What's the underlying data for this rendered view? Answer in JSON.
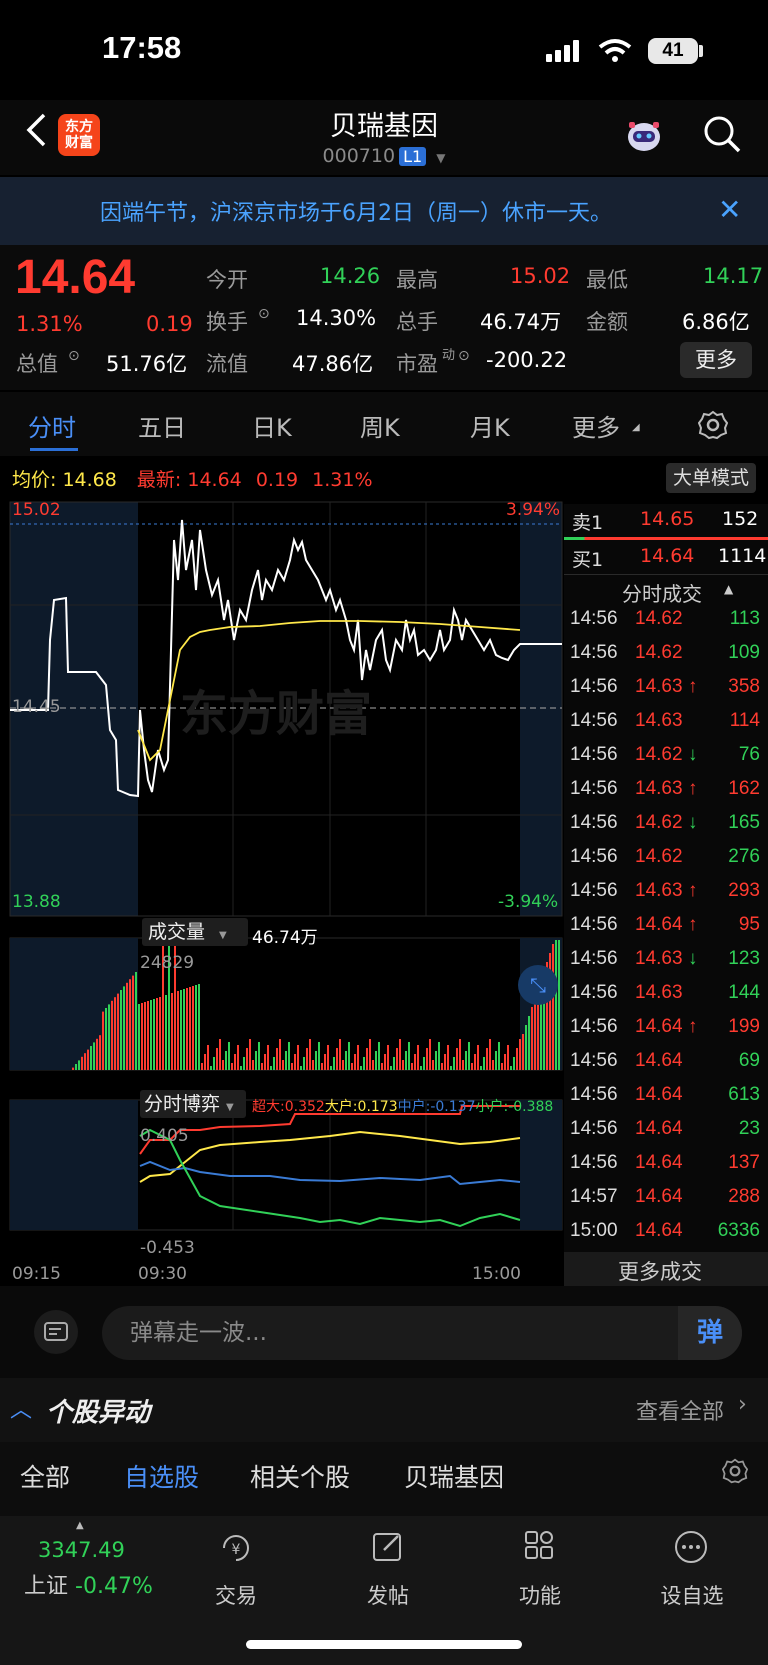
{
  "status_bar": {
    "time": "17:58",
    "battery": "41"
  },
  "header": {
    "stock_name": "贝瑞基因",
    "stock_code": "000710",
    "level_badge": "L1",
    "logo_text_1": "东方",
    "logo_text_2": "财富"
  },
  "notice": {
    "text": "因端午节，沪深京市场于6月2日（周一）休市一天。"
  },
  "quote": {
    "price": "14.64",
    "change_pct": "1.31%",
    "change": "0.19",
    "fields": {
      "open_label": "今开",
      "open": "14.26",
      "high_label": "最高",
      "high": "15.02",
      "low_label": "最低",
      "low": "14.17",
      "turnover_label": "换手",
      "turnover": "14.30%",
      "volume_label": "总手",
      "volume": "46.74万",
      "amount_label": "金额",
      "amount": "6.86亿",
      "mktcap_label": "总值",
      "mktcap": "51.76亿",
      "float_label": "流值",
      "float": "47.86亿",
      "pe_label": "市盈",
      "pe_sup": "动",
      "pe": "-200.22"
    },
    "more_button": "更多"
  },
  "tabs": [
    "分时",
    "五日",
    "日K",
    "周K",
    "月K",
    "更多"
  ],
  "chart": {
    "avg_label": "均价:",
    "avg": "14.68",
    "latest_label": "最新:",
    "latest": "14.64",
    "latest_change": "0.19",
    "latest_pct": "1.31%",
    "big_order_mode": "大单模式",
    "y_top": "15.02",
    "y_top_pct": "3.94%",
    "y_mid": "14.45",
    "y_bottom": "13.88",
    "y_bottom_pct": "-3.94%",
    "watermark": "东方财富",
    "volume_label": "成交量",
    "volume_total": "46.74万",
    "volume_max": "24829",
    "game_label": "分时博弈",
    "game_super_label": "超大:",
    "game_super": "0.352",
    "game_big_label": "大户:",
    "game_big": "0.173",
    "game_mid_label": "中户:",
    "game_mid": "-0.137",
    "game_small_label": "小户:",
    "game_small": "-0.388",
    "game_top": "0.405",
    "game_bottom": "-0.453",
    "x_labels": [
      "09:15",
      "09:30",
      "15:00"
    ],
    "colors": {
      "price_line": "#ffffff",
      "avg_line": "#ffe84a",
      "up": "#ff3b30",
      "down": "#31d158"
    }
  },
  "order_book": {
    "sell1_label": "卖1",
    "sell1_price": "14.65",
    "sell1_vol": "152",
    "buy1_label": "买1",
    "buy1_price": "14.64",
    "buy1_vol": "1114",
    "trades_title": "分时成交",
    "trades": [
      {
        "time": "14:56",
        "price": "14.62",
        "arrow": "",
        "vol": "113",
        "dir": "down"
      },
      {
        "time": "14:56",
        "price": "14.62",
        "arrow": "",
        "vol": "109",
        "dir": "down"
      },
      {
        "time": "14:56",
        "price": "14.63",
        "arrow": "↑",
        "vol": "358",
        "dir": "up"
      },
      {
        "time": "14:56",
        "price": "14.63",
        "arrow": "",
        "vol": "114",
        "dir": "up"
      },
      {
        "time": "14:56",
        "price": "14.62",
        "arrow": "↓",
        "vol": "76",
        "dir": "down"
      },
      {
        "time": "14:56",
        "price": "14.63",
        "arrow": "↑",
        "vol": "162",
        "dir": "up"
      },
      {
        "time": "14:56",
        "price": "14.62",
        "arrow": "↓",
        "vol": "165",
        "dir": "down"
      },
      {
        "time": "14:56",
        "price": "14.62",
        "arrow": "",
        "vol": "276",
        "dir": "down"
      },
      {
        "time": "14:56",
        "price": "14.63",
        "arrow": "↑",
        "vol": "293",
        "dir": "up"
      },
      {
        "time": "14:56",
        "price": "14.64",
        "arrow": "↑",
        "vol": "95",
        "dir": "up"
      },
      {
        "time": "14:56",
        "price": "14.63",
        "arrow": "↓",
        "vol": "123",
        "dir": "down"
      },
      {
        "time": "14:56",
        "price": "14.63",
        "arrow": "",
        "vol": "144",
        "dir": "down"
      },
      {
        "time": "14:56",
        "price": "14.64",
        "arrow": "↑",
        "vol": "199",
        "dir": "up"
      },
      {
        "time": "14:56",
        "price": "14.64",
        "arrow": "",
        "vol": "69",
        "dir": "down"
      },
      {
        "time": "14:56",
        "price": "14.64",
        "arrow": "",
        "vol": "613",
        "dir": "down"
      },
      {
        "time": "14:56",
        "price": "14.64",
        "arrow": "",
        "vol": "23",
        "dir": "down"
      },
      {
        "time": "14:56",
        "price": "14.64",
        "arrow": "",
        "vol": "137",
        "dir": "up"
      },
      {
        "time": "14:57",
        "price": "14.64",
        "arrow": "",
        "vol": "288",
        "dir": "up"
      },
      {
        "time": "15:00",
        "price": "14.64",
        "arrow": "",
        "vol": "6336",
        "dir": "down"
      }
    ],
    "more_trades": "更多成交"
  },
  "danmu": {
    "placeholder": "弹幕走一波...",
    "button": "弹"
  },
  "movement": {
    "title": "个股异动",
    "view_all": "查看全部"
  },
  "filters": [
    "全部",
    "自选股",
    "相关个股",
    "贝瑞基因"
  ],
  "bottom_nav": {
    "index_value": "3347.49",
    "index_name": "上证",
    "index_change": "-0.47%",
    "items": [
      "交易",
      "发帖",
      "功能",
      "设自选"
    ]
  }
}
